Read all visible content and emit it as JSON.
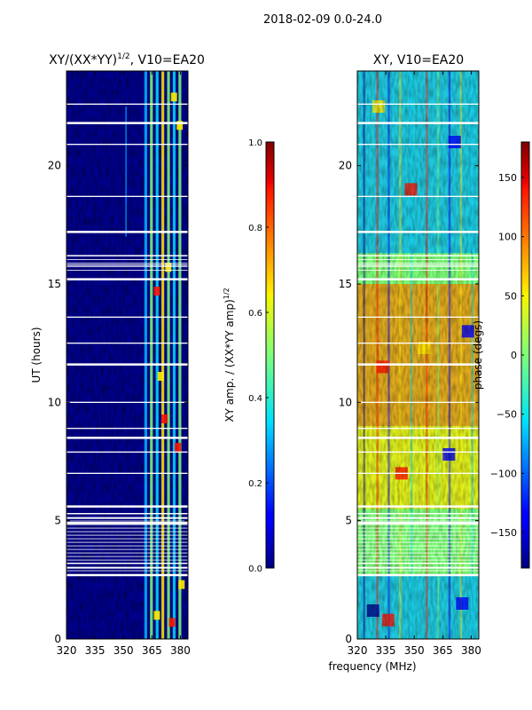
{
  "chart_data": {
    "suptitle": "2018-02-09 0.0-24.0",
    "xlabel_shared": "frequency (MHz)",
    "panels": [
      {
        "type": "heatmap",
        "title_main": "XY/(XX*YY)",
        "title_sup": "1/2",
        "title_tail": ", V10=EA20",
        "ylabel": "UT (hours)",
        "xlim": [
          320,
          384
        ],
        "ylim": [
          0,
          24
        ],
        "x_ticks": [
          320,
          335,
          350,
          365,
          380
        ],
        "y_ticks": [
          0,
          5,
          10,
          15,
          20
        ],
        "colorbar": {
          "label_main": "XY amp. / (XX*YY amp)",
          "label_sup": "1/2",
          "range": [
            0.0,
            1.0
          ],
          "ticks": [
            "0.0",
            "0.2",
            "0.4",
            "0.6",
            "0.8",
            "1.0"
          ],
          "tick_values": [
            0.0,
            0.2,
            0.4,
            0.6,
            0.8,
            1.0
          ]
        },
        "flagged_hours": [
          2.7,
          3.0,
          3.2,
          4.9,
          5.1,
          5.3,
          5.6,
          7.0,
          7.9,
          8.5,
          8.9,
          10.0,
          11.6,
          12.5,
          13.6,
          15.2,
          15.8,
          16.2,
          17.2,
          18.7,
          20.9,
          21.8,
          22.6
        ]
      },
      {
        "type": "heatmap",
        "title_main": "XY, V10=EA20",
        "ylabel": "",
        "xlim": [
          320,
          384
        ],
        "ylim": [
          0,
          24
        ],
        "x_ticks": [
          320,
          335,
          350,
          365,
          380
        ],
        "y_ticks": [
          0,
          5,
          10,
          15,
          20
        ],
        "colorbar": {
          "label_main": "phase (degs)",
          "range": [
            -180,
            180
          ],
          "ticks": [
            "150",
            "100",
            "50",
            "0",
            "−50",
            "−100",
            "−150"
          ],
          "tick_values": [
            150,
            100,
            50,
            0,
            -50,
            -100,
            -150
          ]
        },
        "flagged_hours": [
          2.7,
          3.0,
          3.2,
          4.9,
          5.1,
          5.3,
          5.6,
          7.0,
          7.9,
          8.5,
          8.9,
          10.0,
          11.6,
          12.5,
          13.6,
          15.2,
          15.8,
          16.2,
          17.2,
          18.7,
          20.9,
          21.8,
          22.6
        ]
      }
    ]
  }
}
